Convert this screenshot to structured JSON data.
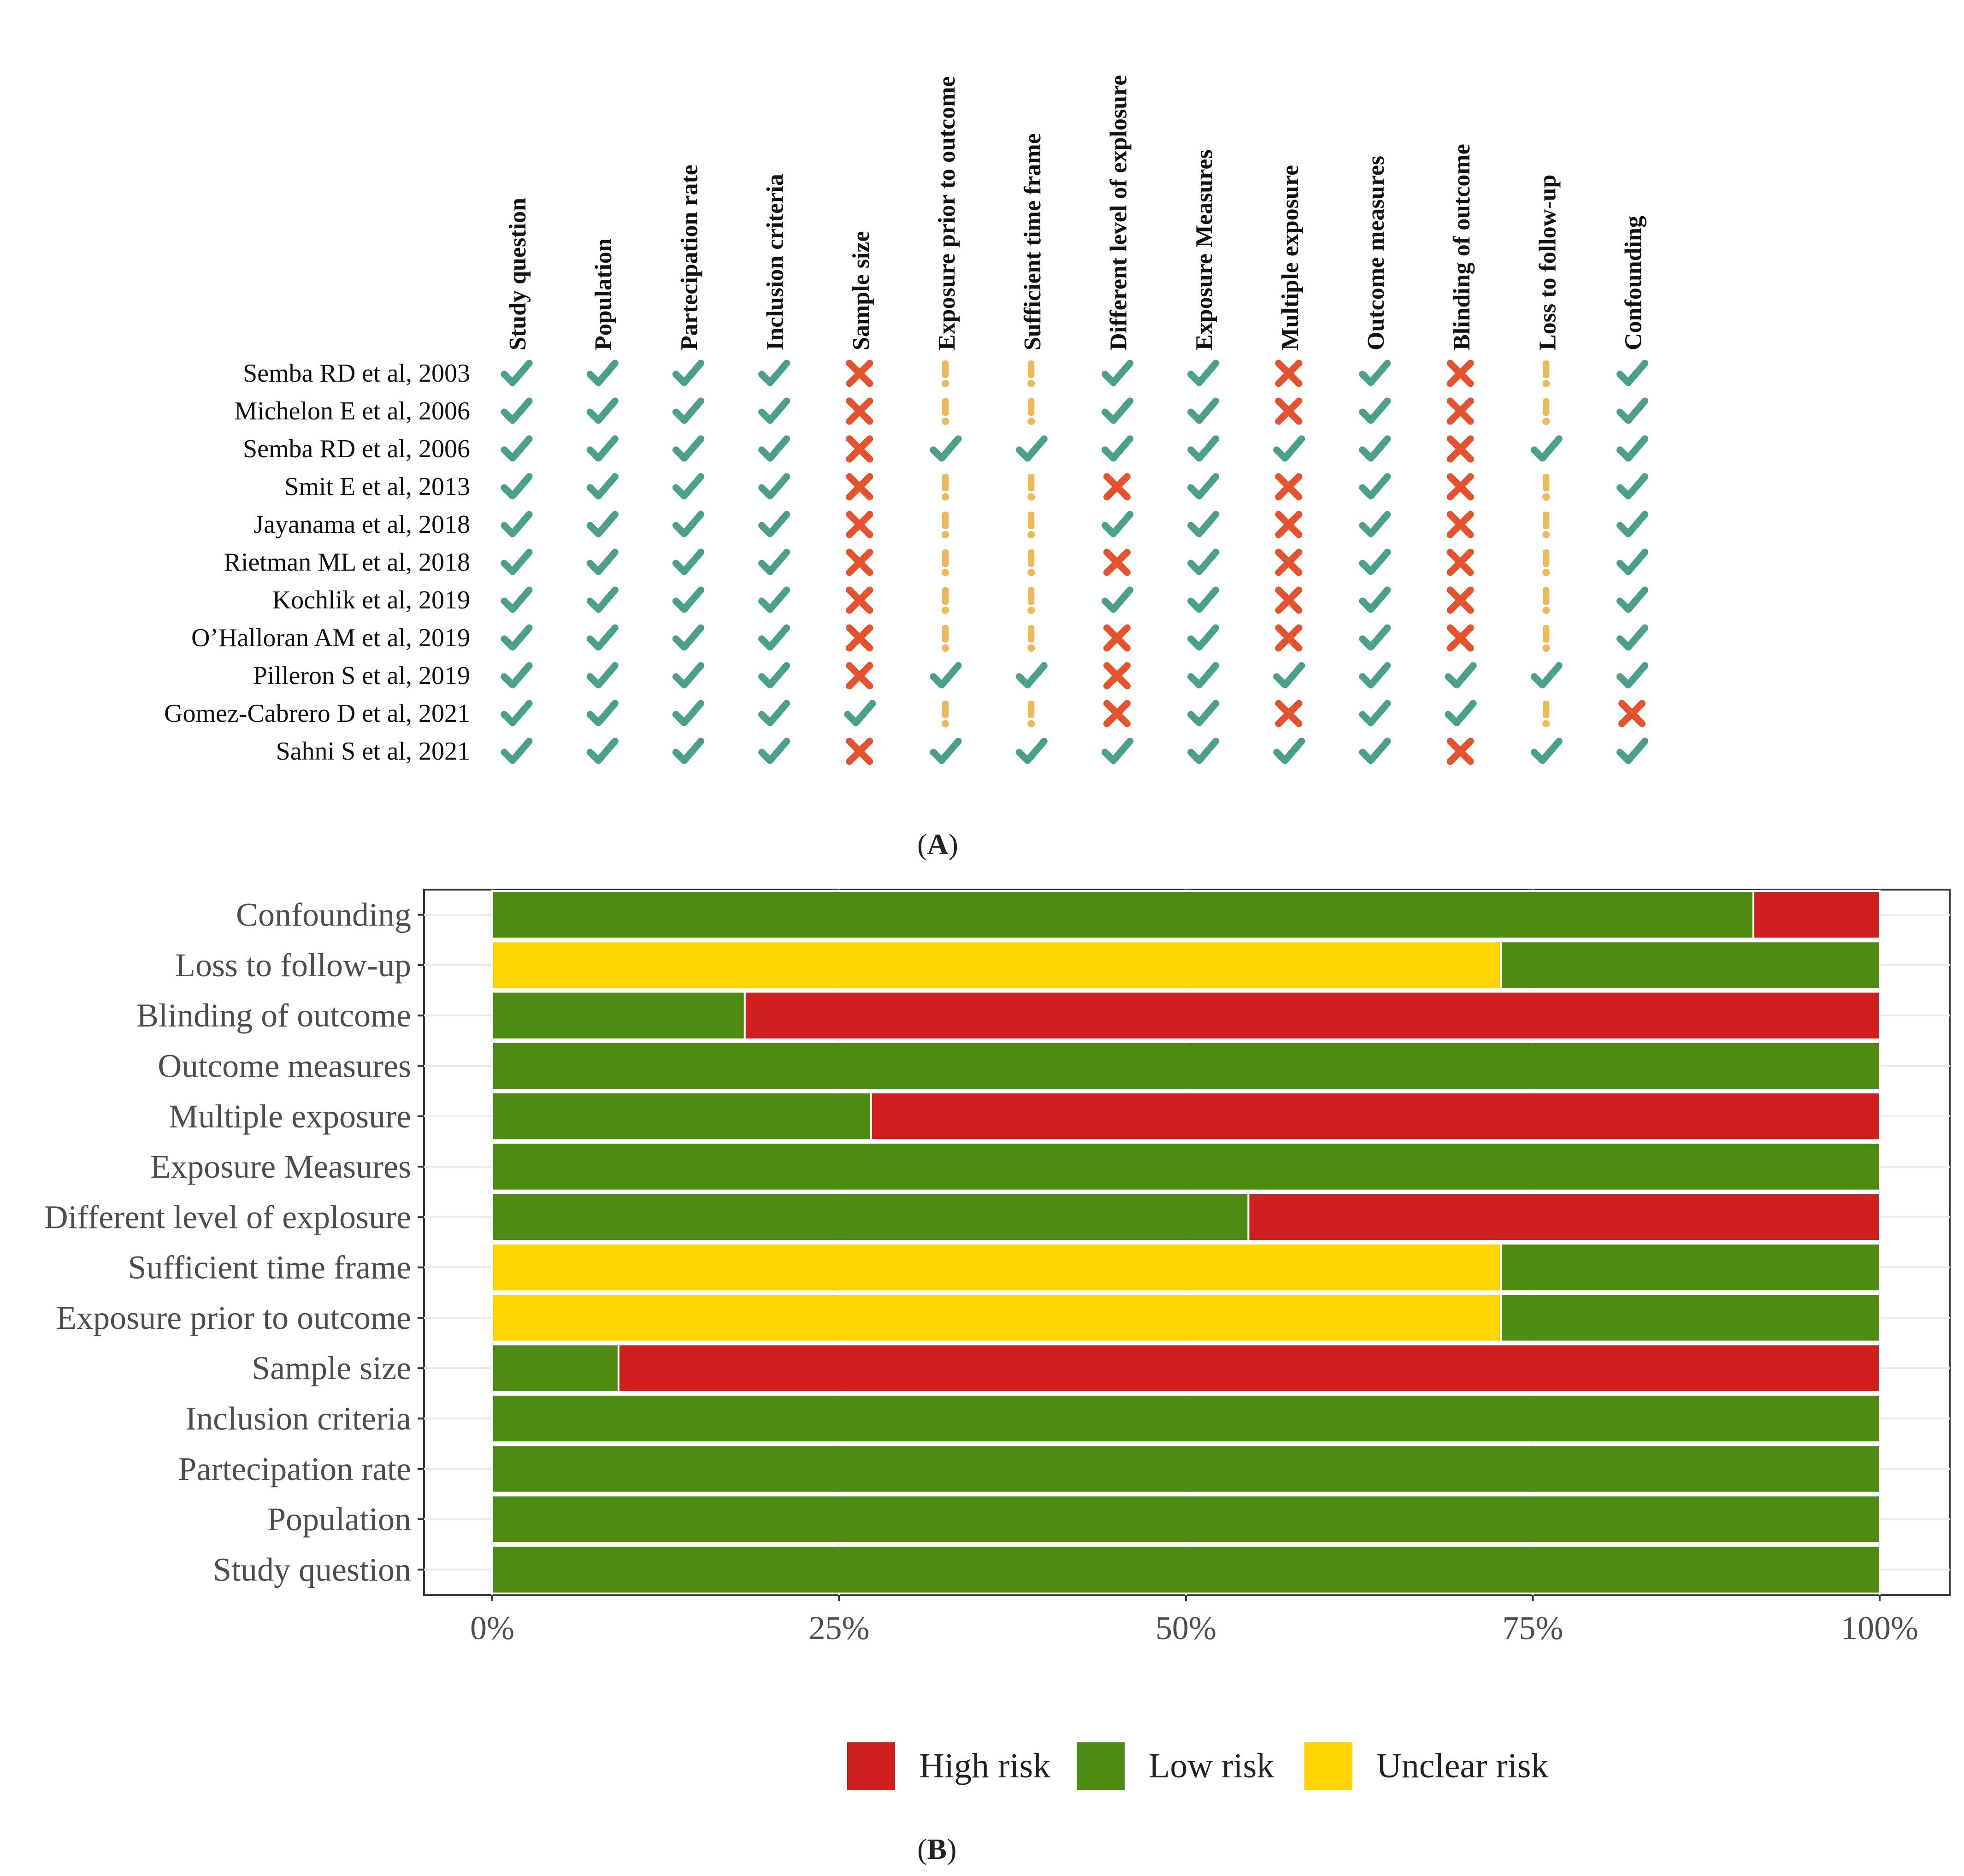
{
  "panel_a_label": "A",
  "panel_b_label": "B",
  "colors": {
    "low": "#4e8b12",
    "high": "#d01f1f",
    "unclear": "#ffd400",
    "check": "#4aa08a",
    "cross": "#e4532d",
    "excl": "#eeb95a",
    "axis_text": "#4d4d4d",
    "grid": "#ebebeb"
  },
  "chart_data": [
    {
      "type": "table",
      "domains": [
        "Study question",
        "Population",
        "Partecipation rate",
        "Inclusion criteria",
        "Sample size",
        "Exposure prior to outcome",
        "Sufficient time frame",
        "Different level of explosure",
        "Exposure Measures",
        "Multiple exposure",
        "Outcome measures",
        "Blinding of outcome",
        "Loss to follow-up",
        "Confounding"
      ],
      "studies": [
        "Semba RD et al, 2003",
        "Michelon E et al, 2006",
        "Semba RD et al, 2006",
        "Smit E et al, 2013",
        "Jayanama et al, 2018",
        "Rietman ML et al, 2018",
        "Kochlik et al, 2019",
        "O’Halloran AM et al, 2019",
        "Pilleron S et al, 2019",
        "Gomez-Cabrero D et al, 2021",
        "Sahni S et al, 2021"
      ],
      "ratings_legend": {
        "L": "low",
        "H": "high",
        "U": "unclear"
      },
      "ratings": [
        [
          "L",
          "L",
          "L",
          "L",
          "H",
          "U",
          "U",
          "L",
          "L",
          "H",
          "L",
          "H",
          "U",
          "L"
        ],
        [
          "L",
          "L",
          "L",
          "L",
          "H",
          "U",
          "U",
          "L",
          "L",
          "H",
          "L",
          "H",
          "U",
          "L"
        ],
        [
          "L",
          "L",
          "L",
          "L",
          "H",
          "L",
          "L",
          "L",
          "L",
          "L",
          "L",
          "H",
          "L",
          "L"
        ],
        [
          "L",
          "L",
          "L",
          "L",
          "H",
          "U",
          "U",
          "H",
          "L",
          "H",
          "L",
          "H",
          "U",
          "L"
        ],
        [
          "L",
          "L",
          "L",
          "L",
          "H",
          "U",
          "U",
          "L",
          "L",
          "H",
          "L",
          "H",
          "U",
          "L"
        ],
        [
          "L",
          "L",
          "L",
          "L",
          "H",
          "U",
          "U",
          "H",
          "L",
          "H",
          "L",
          "H",
          "U",
          "L"
        ],
        [
          "L",
          "L",
          "L",
          "L",
          "H",
          "U",
          "U",
          "L",
          "L",
          "H",
          "L",
          "H",
          "U",
          "L"
        ],
        [
          "L",
          "L",
          "L",
          "L",
          "H",
          "U",
          "U",
          "H",
          "L",
          "H",
          "L",
          "H",
          "U",
          "L"
        ],
        [
          "L",
          "L",
          "L",
          "L",
          "H",
          "L",
          "L",
          "H",
          "L",
          "L",
          "L",
          "L",
          "L",
          "L"
        ],
        [
          "L",
          "L",
          "L",
          "L",
          "L",
          "U",
          "U",
          "H",
          "L",
          "H",
          "L",
          "L",
          "U",
          "H"
        ],
        [
          "L",
          "L",
          "L",
          "L",
          "H",
          "L",
          "L",
          "L",
          "L",
          "L",
          "L",
          "H",
          "L",
          "L"
        ]
      ]
    },
    {
      "type": "bar",
      "orientation": "horizontal",
      "stacked": true,
      "categories": [
        "Study question",
        "Population",
        "Partecipation rate",
        "Inclusion criteria",
        "Sample size",
        "Exposure prior to outcome",
        "Sufficient time frame",
        "Different level of explosure",
        "Exposure Measures",
        "Multiple exposure",
        "Outcome measures",
        "Blinding of outcome",
        "Loss to follow-up",
        "Confounding"
      ],
      "series": [
        {
          "name": "Unclear risk",
          "key": "unclear",
          "values": [
            0,
            0,
            0,
            0,
            0,
            72.7,
            72.7,
            0,
            0,
            0,
            0,
            0,
            72.7,
            0
          ]
        },
        {
          "name": "Low risk",
          "key": "low",
          "values": [
            100,
            100,
            100,
            100,
            9.1,
            27.3,
            27.3,
            54.5,
            100,
            27.3,
            100,
            18.2,
            27.3,
            90.9
          ]
        },
        {
          "name": "High risk",
          "key": "high",
          "values": [
            0,
            0,
            0,
            0,
            90.9,
            0,
            0,
            45.5,
            0,
            72.7,
            0,
            81.8,
            0,
            9.1
          ]
        }
      ],
      "xlim": [
        0,
        100
      ],
      "xticks": [
        "0%",
        "25%",
        "50%",
        "75%",
        "100%"
      ],
      "legend": [
        "High risk",
        "Low risk",
        "Unclear risk"
      ],
      "legend_position": "bottom",
      "grid": true
    }
  ]
}
